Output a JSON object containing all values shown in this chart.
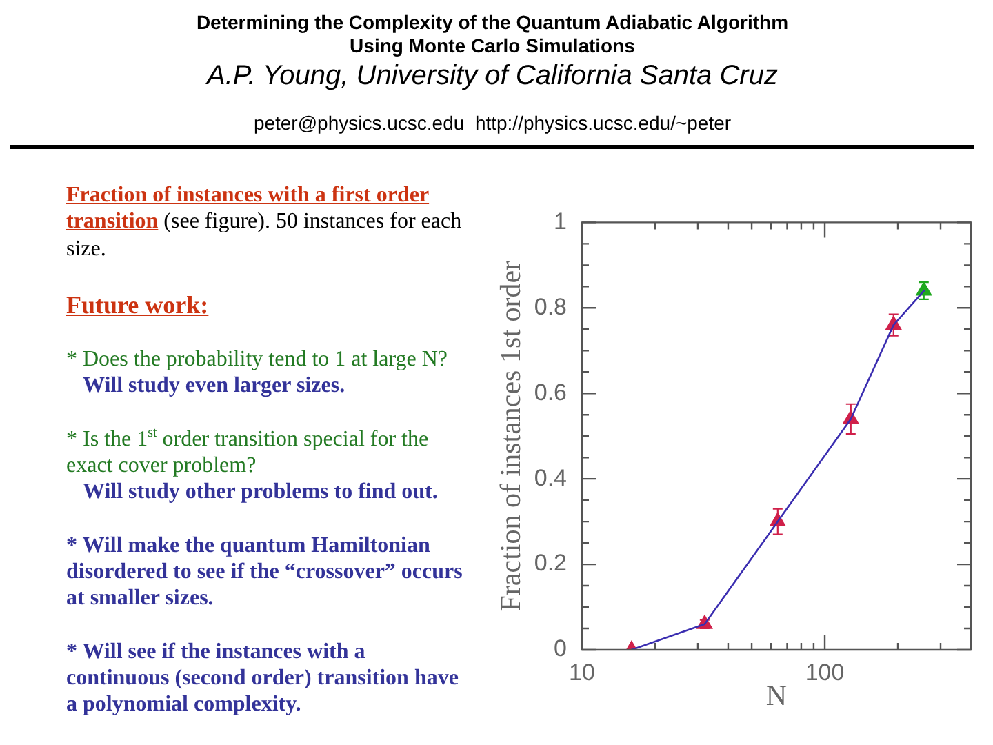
{
  "chart_data": {
    "type": "line",
    "title": "Determining the Complexity of the Quantum Adiabatic Algorithm Using Monte Carlo Simulations",
    "subtitle": "A.P. Young, University of California Santa Cruz",
    "xlabel": "N",
    "ylabel": "Fraction of instances 1st order",
    "x": [
      16,
      32,
      64,
      128,
      192,
      256
    ],
    "series": [
      {
        "color": "#3a2db0",
        "marker": "none",
        "values": [
          0,
          0.06,
          0.3,
          0.54,
          0.76,
          0.84
        ]
      },
      {
        "type": "scatter",
        "color": "#d0204a",
        "x": [
          16,
          32,
          64,
          128,
          192
        ],
        "values": [
          0,
          0.06,
          0.3,
          0.54,
          0.76
        ],
        "errors": [
          null,
          0.01,
          0.03,
          0.035,
          0.025
        ]
      },
      {
        "type": "scatter",
        "color": "#1fa81f",
        "x": [
          256
        ],
        "values": [
          0.84
        ],
        "errors": [
          0.02
        ]
      }
    ],
    "log": "x",
    "xlim": [
      10,
      400
    ],
    "xticks": [
      10,
      {
        "value": 20,
        "label": null
      },
      {
        "value": 30,
        "label": null
      },
      {
        "value": 40,
        "label": null
      },
      {
        "value": 50,
        "label": null
      },
      {
        "value": 60,
        "label": null
      },
      {
        "value": 70,
        "label": null
      },
      {
        "value": 80,
        "label": null
      },
      {
        "value": 90,
        "label": null
      },
      100,
      {
        "value": 200,
        "label": null
      },
      {
        "value": 300,
        "label": null
      }
    ],
    "ylim": [
      0,
      1
    ],
    "yticks": [
      0,
      {
        "value": 0.05,
        "label": null
      },
      {
        "value": 0.1,
        "label": null
      },
      {
        "value": 0.15,
        "label": null
      },
      0.2,
      {
        "value": 0.25,
        "label": null
      },
      {
        "value": 0.3,
        "label": null
      },
      {
        "value": 0.35,
        "label": null
      },
      0.4,
      {
        "value": 0.45,
        "label": null
      },
      {
        "value": 0.5,
        "label": null
      },
      {
        "value": 0.55,
        "label": null
      },
      0.6,
      {
        "value": 0.65,
        "label": null
      },
      {
        "value": 0.7,
        "label": null
      },
      {
        "value": 0.75,
        "label": null
      },
      0.8,
      {
        "value": 0.85,
        "label": null
      },
      {
        "value": 0.9,
        "label": null
      },
      {
        "value": 0.95,
        "label": null
      },
      1
    ],
    "marker": "triangle",
    "line_style": "solid",
    "annotations": [
      "peter@physics.ucsc.edu  http://physics.ucsc.edu/~peter",
      "Fraction of instances with a first order",
      "transition",
      "(see figure). 50 instances for each",
      "size.",
      "Future work:",
      "* Does the probability tend to 1 at large N?",
      "Will study even larger sizes.",
      "* Is the 1$^{st}$ order transition special for the exact cover problem?",
      "Will study other problems to find out.",
      "* Will make the quantum Hamiltonian disordered to see if the “crossover” occurs at smaller sizes.",
      "* Will see if the instances with a continuous (second order) transition have a polynomial complexity."
    ]
  }
}
